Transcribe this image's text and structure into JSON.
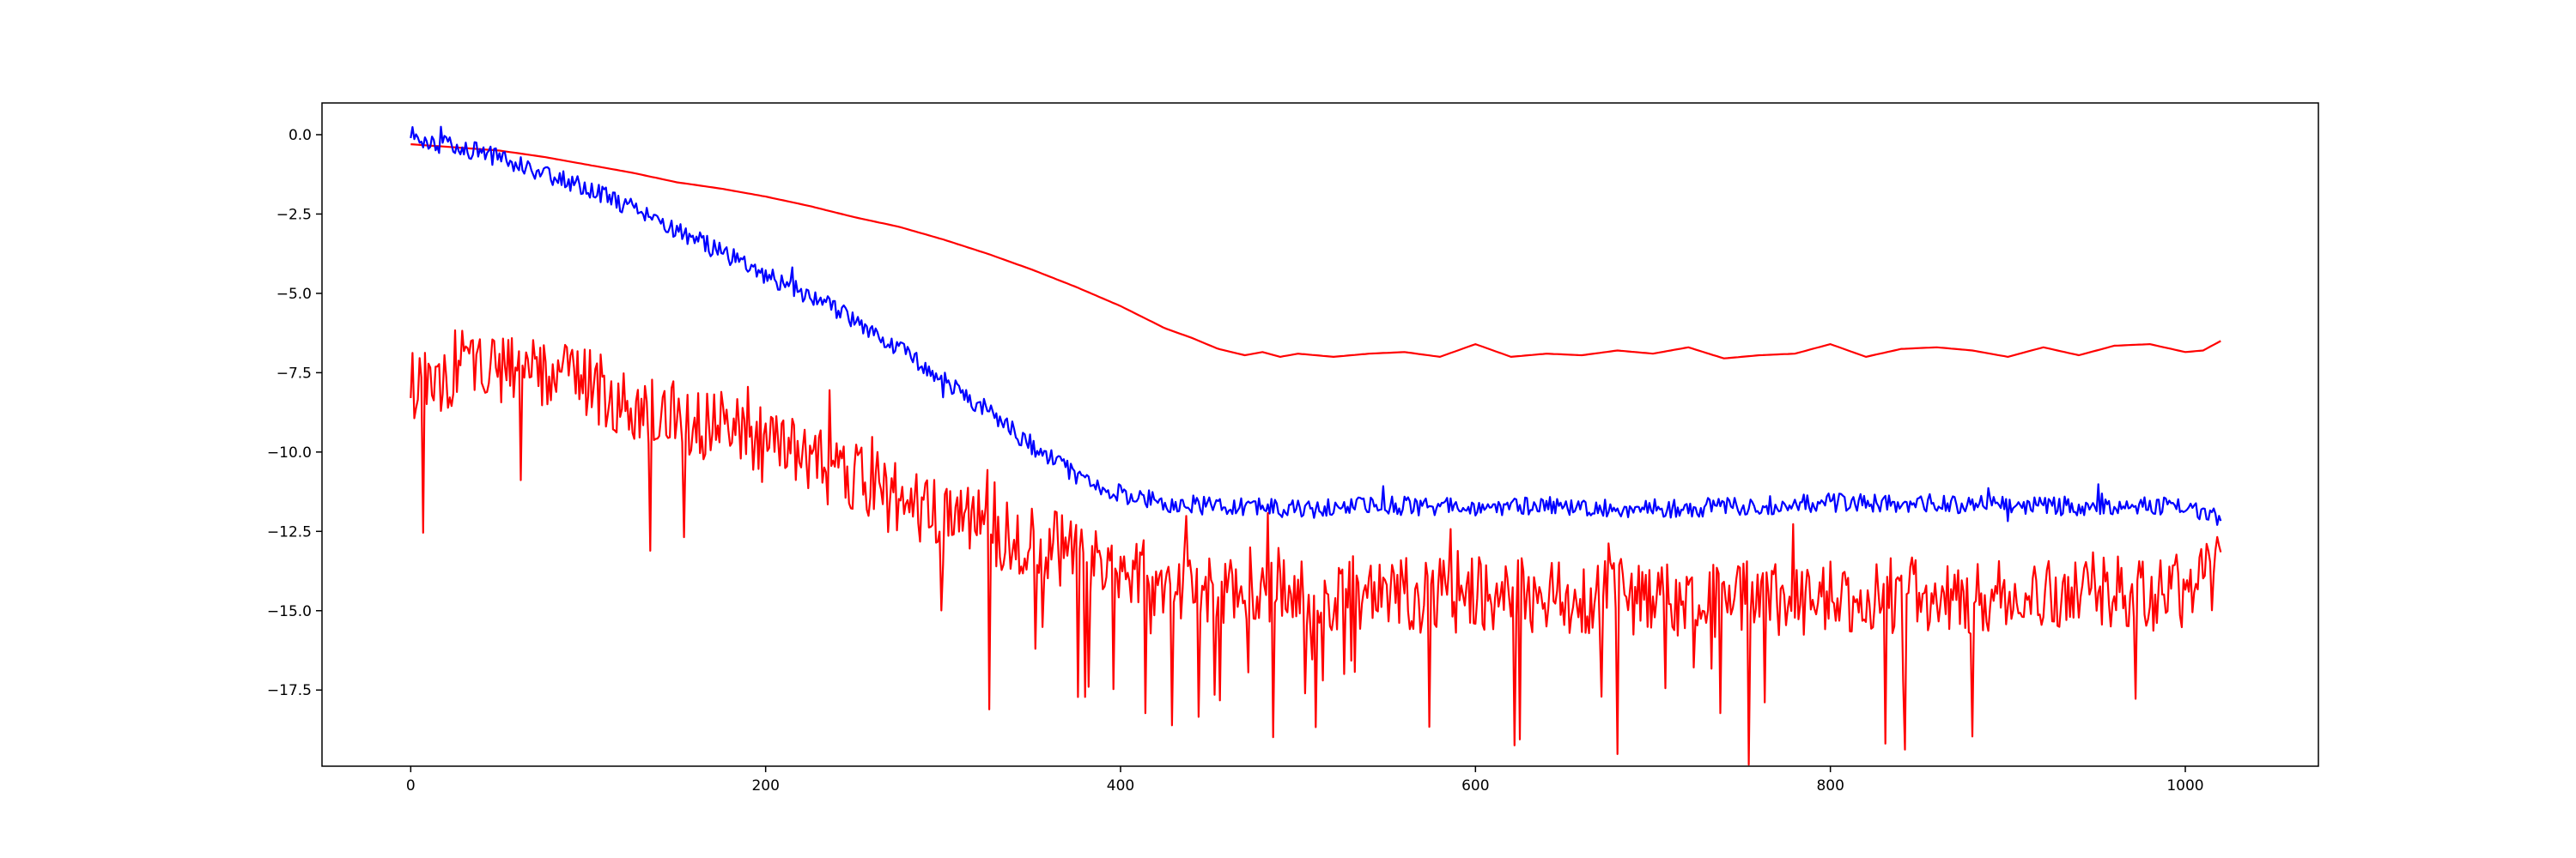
{
  "chart_data": {
    "type": "line",
    "title": "",
    "xlabel": "",
    "ylabel": "",
    "xlim": [
      -50,
      1075
    ],
    "ylim": [
      -19.9,
      1.0
    ],
    "xticks": [
      0,
      200,
      400,
      600,
      800,
      1000
    ],
    "xtick_labels": [
      "0",
      "200",
      "400",
      "600",
      "800",
      "1000"
    ],
    "yticks": [
      0.0,
      -2.5,
      -5.0,
      -7.5,
      -10.0,
      -12.5,
      -15.0,
      -17.5
    ],
    "ytick_labels": [
      "0.0",
      "−2.5",
      "−5.0",
      "−7.5",
      "−10.0",
      "−12.5",
      "−15.0",
      "−17.5"
    ],
    "grid": false,
    "legend": "none",
    "series": [
      {
        "color": "#ff0000",
        "style": "smooth",
        "x": [
          0,
          25,
          50,
          75,
          100,
          125,
          150,
          175,
          200,
          225,
          250,
          275,
          300,
          325,
          350,
          375,
          400,
          425,
          440,
          455,
          470,
          480,
          490,
          500,
          520,
          540,
          560,
          580,
          600,
          620,
          640,
          660,
          680,
          700,
          720,
          740,
          760,
          780,
          800,
          820,
          840,
          860,
          880,
          900,
          920,
          940,
          960,
          980,
          1000,
          1010,
          1020
        ],
        "y": [
          -0.3,
          -0.4,
          -0.5,
          -0.7,
          -0.95,
          -1.2,
          -1.5,
          -1.7,
          -1.95,
          -2.25,
          -2.6,
          -2.9,
          -3.3,
          -3.75,
          -4.25,
          -4.8,
          -5.4,
          -6.1,
          -6.4,
          -6.75,
          -6.95,
          -6.85,
          -7.0,
          -6.9,
          -7.0,
          -6.9,
          -6.85,
          -7.0,
          -6.6,
          -7.0,
          -6.9,
          -6.95,
          -6.8,
          -6.9,
          -6.7,
          -7.05,
          -6.95,
          -6.9,
          -6.6,
          -7.0,
          -6.75,
          -6.7,
          -6.8,
          -7.0,
          -6.7,
          -6.95,
          -6.65,
          -6.6,
          -6.85,
          -6.8,
          -6.5
        ]
      },
      {
        "color": "#0000ff",
        "style": "noisy",
        "noise": 0.3,
        "x": [
          0,
          10,
          25,
          50,
          75,
          100,
          125,
          150,
          175,
          200,
          225,
          250,
          275,
          300,
          325,
          350,
          375,
          400,
          425,
          450,
          500,
          550,
          600,
          650,
          700,
          750,
          800,
          850,
          900,
          950,
          1000,
          1020
        ],
        "y": [
          0.0,
          -0.2,
          -0.4,
          -0.7,
          -1.2,
          -1.7,
          -2.3,
          -3.0,
          -3.7,
          -4.4,
          -5.1,
          -5.8,
          -6.7,
          -7.7,
          -8.7,
          -9.8,
          -10.7,
          -11.3,
          -11.6,
          -11.7,
          -11.8,
          -11.7,
          -11.7,
          -11.7,
          -11.8,
          -11.7,
          -11.6,
          -11.6,
          -11.7,
          -11.7,
          -11.7,
          -12.1
        ]
      },
      {
        "color": "#ff0000",
        "style": "spiky",
        "noise": 1.2,
        "x": [
          0,
          25,
          50,
          75,
          100,
          125,
          150,
          175,
          200,
          225,
          250,
          275,
          300,
          325,
          350,
          375,
          400,
          450,
          500,
          550,
          600,
          650,
          700,
          750,
          800,
          850,
          900,
          950,
          1000,
          1020
        ],
        "y": [
          -8.0,
          -7.3,
          -7.4,
          -7.6,
          -7.9,
          -8.4,
          -8.9,
          -9.3,
          -9.8,
          -10.3,
          -10.8,
          -11.5,
          -12.0,
          -12.4,
          -12.8,
          -13.3,
          -13.8,
          -14.2,
          -14.4,
          -14.5,
          -14.5,
          -14.5,
          -14.6,
          -14.6,
          -14.6,
          -14.5,
          -14.6,
          -14.5,
          -14.4,
          -13.8
        ]
      }
    ]
  }
}
